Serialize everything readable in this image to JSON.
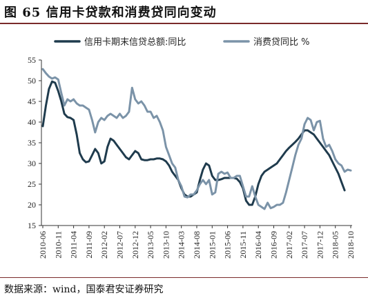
{
  "figure": {
    "title": "图 65  信用卡贷款和消费贷同向变动",
    "source": "数据来源：wind，国泰君安证券研究"
  },
  "chart_data": {
    "type": "line",
    "title": "",
    "xlabel": "",
    "ylabel": "",
    "ylim": [
      15,
      55
    ],
    "yticks": [
      15,
      20,
      25,
      30,
      35,
      40,
      45,
      50,
      55
    ],
    "xlim": [
      "2010-06",
      "2018-10"
    ],
    "xticks": [
      "2010-06",
      "2010-11",
      "2011-04",
      "2011-09",
      "2012-02",
      "2012-07",
      "2012-12",
      "2013-05",
      "2013-10",
      "2014-03",
      "2014-08",
      "2015-01",
      "2015-06",
      "2015-11",
      "2016-04",
      "2016-09",
      "2017-02",
      "2017-07",
      "2017-12",
      "2018-05",
      "2018-10"
    ],
    "grid": false,
    "legend_position": "top",
    "series": [
      {
        "name": "信用卡期末信贷总额:同比",
        "color": "#1f3b4d",
        "points": [
          [
            "2010-06",
            39
          ],
          [
            "2010-07",
            44
          ],
          [
            "2010-08",
            48
          ],
          [
            "2010-09",
            49.8
          ],
          [
            "2010-10",
            49.5
          ],
          [
            "2010-11",
            47.5
          ],
          [
            "2010-12",
            45
          ],
          [
            "2011-01",
            42
          ],
          [
            "2011-02",
            41.2
          ],
          [
            "2011-03",
            41
          ],
          [
            "2011-04",
            40.5
          ],
          [
            "2011-05",
            37
          ],
          [
            "2011-06",
            32.5
          ],
          [
            "2011-07",
            31
          ],
          [
            "2011-08",
            30.3
          ],
          [
            "2011-09",
            30.5
          ],
          [
            "2011-10",
            32
          ],
          [
            "2011-11",
            33.5
          ],
          [
            "2011-12",
            32.5
          ],
          [
            "2012-01",
            30
          ],
          [
            "2012-02",
            30.5
          ],
          [
            "2012-03",
            34
          ],
          [
            "2012-04",
            36
          ],
          [
            "2012-05",
            35.5
          ],
          [
            "2012-06",
            34.5
          ],
          [
            "2012-07",
            33.5
          ],
          [
            "2012-08",
            32.5
          ],
          [
            "2012-09",
            31.5
          ],
          [
            "2012-10",
            31
          ],
          [
            "2012-11",
            32
          ],
          [
            "2012-12",
            33
          ],
          [
            "2013-01",
            32.5
          ],
          [
            "2013-02",
            31
          ],
          [
            "2013-03",
            30.8
          ],
          [
            "2013-04",
            30.8
          ],
          [
            "2013-05",
            31
          ],
          [
            "2013-06",
            31
          ],
          [
            "2013-07",
            31.2
          ],
          [
            "2013-08",
            31.2
          ],
          [
            "2013-09",
            31
          ],
          [
            "2013-10",
            30.5
          ],
          [
            "2013-11",
            29.5
          ],
          [
            "2013-12",
            28
          ],
          [
            "2014-01",
            27
          ],
          [
            "2014-02",
            26
          ],
          [
            "2014-03",
            24
          ],
          [
            "2014-04",
            22.5
          ],
          [
            "2014-05",
            22
          ],
          [
            "2014-06",
            22
          ],
          [
            "2014-07",
            22.5
          ],
          [
            "2014-08",
            23
          ],
          [
            "2014-09",
            26
          ],
          [
            "2014-10",
            28.5
          ],
          [
            "2014-11",
            30
          ],
          [
            "2014-12",
            29.5
          ],
          [
            "2015-01",
            27
          ],
          [
            "2015-02",
            26
          ],
          [
            "2015-03",
            26
          ],
          [
            "2015-04",
            26.2
          ],
          [
            "2015-05",
            26.5
          ],
          [
            "2015-06",
            26.5
          ],
          [
            "2015-07",
            26.5
          ],
          [
            "2015-08",
            26.5
          ],
          [
            "2015-09",
            26.3
          ],
          [
            "2015-10",
            25.5
          ],
          [
            "2015-11",
            24
          ],
          [
            "2015-12",
            21
          ],
          [
            "2016-01",
            20
          ],
          [
            "2016-02",
            20
          ],
          [
            "2016-03",
            22
          ],
          [
            "2016-04",
            25
          ],
          [
            "2016-05",
            27
          ],
          [
            "2016-06",
            28
          ],
          [
            "2016-07",
            28.5
          ],
          [
            "2016-08",
            29
          ],
          [
            "2016-09",
            29.5
          ],
          [
            "2016-10",
            30
          ],
          [
            "2016-11",
            31
          ],
          [
            "2016-12",
            32
          ],
          [
            "2017-01",
            33
          ],
          [
            "2017-02",
            33.8
          ],
          [
            "2017-03",
            34.5
          ],
          [
            "2017-04",
            35.2
          ],
          [
            "2017-05",
            36
          ],
          [
            "2017-06",
            37
          ],
          [
            "2017-07",
            38
          ],
          [
            "2017-08",
            38
          ],
          [
            "2017-09",
            37.5
          ],
          [
            "2017-10",
            37
          ],
          [
            "2017-11",
            36
          ],
          [
            "2017-12",
            35
          ],
          [
            "2018-01",
            34
          ],
          [
            "2018-02",
            33
          ],
          [
            "2018-03",
            32
          ],
          [
            "2018-04",
            30.5
          ],
          [
            "2018-05",
            29
          ],
          [
            "2018-06",
            27.5
          ],
          [
            "2018-07",
            25.5
          ],
          [
            "2018-08",
            23.5
          ]
        ]
      },
      {
        "name": "消费贷同比 %",
        "color": "#7b93a8",
        "points": [
          [
            "2010-06",
            52.8
          ],
          [
            "2010-07",
            51.8
          ],
          [
            "2010-08",
            51
          ],
          [
            "2010-09",
            50.5
          ],
          [
            "2010-10",
            50.8
          ],
          [
            "2010-11",
            50.3
          ],
          [
            "2010-12",
            47
          ],
          [
            "2011-01",
            44
          ],
          [
            "2011-02",
            45.5
          ],
          [
            "2011-03",
            45
          ],
          [
            "2011-04",
            45.5
          ],
          [
            "2011-05",
            44.5
          ],
          [
            "2011-06",
            44
          ],
          [
            "2011-07",
            44
          ],
          [
            "2011-08",
            43.5
          ],
          [
            "2011-09",
            43
          ],
          [
            "2011-10",
            40.5
          ],
          [
            "2011-11",
            37.5
          ],
          [
            "2011-12",
            40
          ],
          [
            "2012-01",
            41
          ],
          [
            "2012-02",
            40.5
          ],
          [
            "2012-03",
            41.5
          ],
          [
            "2012-04",
            42
          ],
          [
            "2012-05",
            41.5
          ],
          [
            "2012-06",
            41
          ],
          [
            "2012-07",
            42
          ],
          [
            "2012-08",
            41
          ],
          [
            "2012-09",
            41.5
          ],
          [
            "2012-10",
            42.5
          ],
          [
            "2012-11",
            48.3
          ],
          [
            "2012-12",
            45.5
          ],
          [
            "2013-01",
            44.5
          ],
          [
            "2013-02",
            45
          ],
          [
            "2013-03",
            44
          ],
          [
            "2013-04",
            42.5
          ],
          [
            "2013-05",
            42.5
          ],
          [
            "2013-06",
            41
          ],
          [
            "2013-07",
            41.5
          ],
          [
            "2013-08",
            40
          ],
          [
            "2013-09",
            38
          ],
          [
            "2013-10",
            34
          ],
          [
            "2013-11",
            32
          ],
          [
            "2013-12",
            30
          ],
          [
            "2014-01",
            29
          ],
          [
            "2014-02",
            26
          ],
          [
            "2014-03",
            24.5
          ],
          [
            "2014-04",
            22
          ],
          [
            "2014-05",
            21.8
          ],
          [
            "2014-06",
            22.5
          ],
          [
            "2014-07",
            22.5
          ],
          [
            "2014-08",
            23.5
          ],
          [
            "2014-09",
            25
          ],
          [
            "2014-10",
            26
          ],
          [
            "2014-11",
            25
          ],
          [
            "2014-12",
            26
          ],
          [
            "2015-01",
            22.5
          ],
          [
            "2015-02",
            23
          ],
          [
            "2015-03",
            27.5
          ],
          [
            "2015-04",
            28
          ],
          [
            "2015-05",
            27.5
          ],
          [
            "2015-06",
            27.8
          ],
          [
            "2015-07",
            26.5
          ],
          [
            "2015-08",
            26.5
          ],
          [
            "2015-09",
            27
          ],
          [
            "2015-10",
            27
          ],
          [
            "2015-11",
            24.5
          ],
          [
            "2015-12",
            22
          ],
          [
            "2016-01",
            22
          ],
          [
            "2016-02",
            24.5
          ],
          [
            "2016-03",
            22
          ],
          [
            "2016-04",
            20
          ],
          [
            "2016-05",
            19.5
          ],
          [
            "2016-06",
            19
          ],
          [
            "2016-07",
            20.5
          ],
          [
            "2016-08",
            19.2
          ],
          [
            "2016-09",
            19.5
          ],
          [
            "2016-10",
            20
          ],
          [
            "2016-11",
            20
          ],
          [
            "2016-12",
            20.5
          ],
          [
            "2017-01",
            23
          ],
          [
            "2017-02",
            26
          ],
          [
            "2017-03",
            29
          ],
          [
            "2017-04",
            32
          ],
          [
            "2017-05",
            34.5
          ],
          [
            "2017-06",
            36
          ],
          [
            "2017-07",
            39.5
          ],
          [
            "2017-08",
            41
          ],
          [
            "2017-09",
            40.5
          ],
          [
            "2017-10",
            38
          ],
          [
            "2017-11",
            40
          ],
          [
            "2017-12",
            40.3
          ],
          [
            "2018-01",
            36
          ],
          [
            "2018-02",
            34
          ],
          [
            "2018-03",
            34.5
          ],
          [
            "2018-04",
            33
          ],
          [
            "2018-05",
            31
          ],
          [
            "2018-06",
            30
          ],
          [
            "2018-07",
            29.5
          ],
          [
            "2018-08",
            28
          ],
          [
            "2018-09",
            28.5
          ],
          [
            "2018-10",
            28.3
          ]
        ]
      }
    ]
  }
}
